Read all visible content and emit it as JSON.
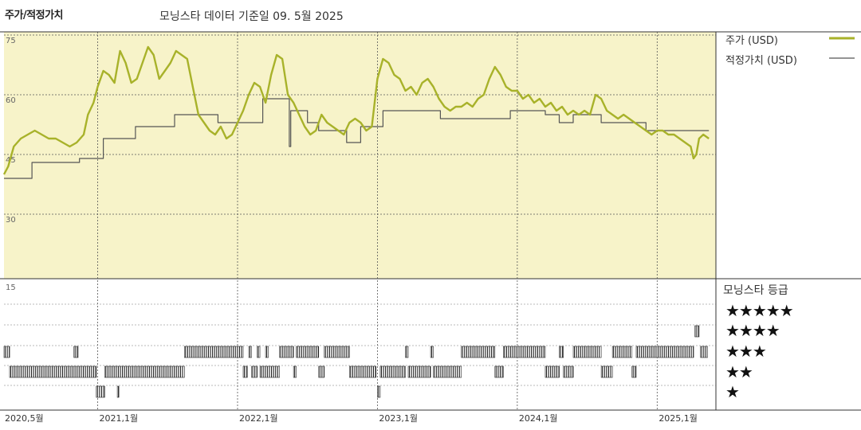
{
  "header": {
    "title": "주가/적정가치",
    "subtitle": "모닝스타 데이터 기준일 09. 5월 2025"
  },
  "legend": {
    "price_label": "주가 (USD)",
    "fair_label": "적정가치 (USD)",
    "price_color": "#a8b22a",
    "fair_color": "#555555"
  },
  "rating_panel": {
    "title": "모닝스타 등급",
    "rows": [
      "★★★★★",
      "★★★★",
      "★★★",
      "★★",
      "★"
    ]
  },
  "chart_data": [
    {
      "type": "line",
      "title": "주가/적정가치",
      "y_ticks": [
        "75",
        "60",
        "45",
        "30",
        "15"
      ],
      "ylim": [
        15,
        75
      ],
      "x_tick_labels": [
        "2020,5월",
        "2021,1월",
        "2022,1월",
        "2023,1월",
        "2024,1월",
        "2025,1월"
      ],
      "x_ticks": [
        2020.33,
        2021.0,
        2022.0,
        2023.0,
        2024.0,
        2025.0
      ],
      "xlim": [
        2020.33,
        2025.42
      ],
      "grid": true,
      "background": "#f7f3c9",
      "series": [
        {
          "name": "주가 (USD)",
          "color": "#a8b22a",
          "points": [
            [
              2020.33,
              40
            ],
            [
              2020.36,
              42
            ],
            [
              2020.4,
              47
            ],
            [
              2020.45,
              49
            ],
            [
              2020.5,
              50
            ],
            [
              2020.55,
              51
            ],
            [
              2020.6,
              50
            ],
            [
              2020.65,
              49
            ],
            [
              2020.7,
              49
            ],
            [
              2020.75,
              48
            ],
            [
              2020.8,
              47
            ],
            [
              2020.85,
              48
            ],
            [
              2020.9,
              50
            ],
            [
              2020.93,
              55
            ],
            [
              2020.97,
              58
            ],
            [
              2021.0,
              62
            ],
            [
              2021.04,
              66
            ],
            [
              2021.08,
              65
            ],
            [
              2021.12,
              63
            ],
            [
              2021.16,
              71
            ],
            [
              2021.2,
              68
            ],
            [
              2021.24,
              63
            ],
            [
              2021.28,
              64
            ],
            [
              2021.32,
              68
            ],
            [
              2021.36,
              72
            ],
            [
              2021.4,
              70
            ],
            [
              2021.44,
              64
            ],
            [
              2021.48,
              66
            ],
            [
              2021.52,
              68
            ],
            [
              2021.56,
              71
            ],
            [
              2021.6,
              70
            ],
            [
              2021.64,
              69
            ],
            [
              2021.68,
              62
            ],
            [
              2021.72,
              55
            ],
            [
              2021.76,
              53
            ],
            [
              2021.8,
              51
            ],
            [
              2021.84,
              50
            ],
            [
              2021.88,
              52
            ],
            [
              2021.92,
              49
            ],
            [
              2021.96,
              50
            ],
            [
              2022.0,
              53
            ],
            [
              2022.04,
              56
            ],
            [
              2022.08,
              60
            ],
            [
              2022.12,
              63
            ],
            [
              2022.16,
              62
            ],
            [
              2022.2,
              58
            ],
            [
              2022.24,
              65
            ],
            [
              2022.28,
              70
            ],
            [
              2022.32,
              69
            ],
            [
              2022.36,
              60
            ],
            [
              2022.4,
              58
            ],
            [
              2022.44,
              55
            ],
            [
              2022.48,
              52
            ],
            [
              2022.52,
              50
            ],
            [
              2022.56,
              51
            ],
            [
              2022.6,
              55
            ],
            [
              2022.64,
              53
            ],
            [
              2022.68,
              52
            ],
            [
              2022.72,
              51
            ],
            [
              2022.76,
              50
            ],
            [
              2022.8,
              53
            ],
            [
              2022.84,
              54
            ],
            [
              2022.88,
              53
            ],
            [
              2022.92,
              51
            ],
            [
              2022.96,
              52
            ],
            [
              2023.0,
              64
            ],
            [
              2023.04,
              69
            ],
            [
              2023.08,
              68
            ],
            [
              2023.12,
              65
            ],
            [
              2023.16,
              64
            ],
            [
              2023.2,
              61
            ],
            [
              2023.24,
              62
            ],
            [
              2023.28,
              60
            ],
            [
              2023.32,
              63
            ],
            [
              2023.36,
              64
            ],
            [
              2023.4,
              62
            ],
            [
              2023.44,
              59
            ],
            [
              2023.48,
              57
            ],
            [
              2023.52,
              56
            ],
            [
              2023.56,
              57
            ],
            [
              2023.6,
              57
            ],
            [
              2023.64,
              58
            ],
            [
              2023.68,
              57
            ],
            [
              2023.72,
              59
            ],
            [
              2023.76,
              60
            ],
            [
              2023.8,
              64
            ],
            [
              2023.84,
              67
            ],
            [
              2023.88,
              65
            ],
            [
              2023.92,
              62
            ],
            [
              2023.96,
              61
            ],
            [
              2024.0,
              61
            ],
            [
              2024.04,
              59
            ],
            [
              2024.08,
              60
            ],
            [
              2024.12,
              58
            ],
            [
              2024.16,
              59
            ],
            [
              2024.2,
              57
            ],
            [
              2024.24,
              58
            ],
            [
              2024.28,
              56
            ],
            [
              2024.32,
              57
            ],
            [
              2024.36,
              55
            ],
            [
              2024.4,
              56
            ],
            [
              2024.44,
              55
            ],
            [
              2024.48,
              56
            ],
            [
              2024.52,
              55
            ],
            [
              2024.56,
              60
            ],
            [
              2024.6,
              59
            ],
            [
              2024.64,
              56
            ],
            [
              2024.68,
              55
            ],
            [
              2024.72,
              54
            ],
            [
              2024.76,
              55
            ],
            [
              2024.8,
              54
            ],
            [
              2024.84,
              53
            ],
            [
              2024.88,
              52
            ],
            [
              2024.92,
              51
            ],
            [
              2024.96,
              50
            ],
            [
              2025.0,
              51
            ],
            [
              2025.04,
              51
            ],
            [
              2025.08,
              50
            ],
            [
              2025.12,
              50
            ],
            [
              2025.16,
              49
            ],
            [
              2025.2,
              48
            ],
            [
              2025.24,
              47
            ],
            [
              2025.26,
              44
            ],
            [
              2025.28,
              45
            ],
            [
              2025.3,
              49
            ],
            [
              2025.33,
              50
            ],
            [
              2025.37,
              49
            ]
          ]
        },
        {
          "name": "적정가치 (USD)",
          "color": "#555555",
          "points": [
            [
              2020.33,
              39
            ],
            [
              2020.53,
              39
            ],
            [
              2020.53,
              43
            ],
            [
              2020.87,
              43
            ],
            [
              2020.87,
              44
            ],
            [
              2021.04,
              44
            ],
            [
              2021.04,
              49
            ],
            [
              2021.27,
              49
            ],
            [
              2021.27,
              52
            ],
            [
              2021.55,
              52
            ],
            [
              2021.55,
              55
            ],
            [
              2021.86,
              55
            ],
            [
              2021.86,
              53
            ],
            [
              2022.18,
              53
            ],
            [
              2022.18,
              59
            ],
            [
              2022.37,
              59
            ],
            [
              2022.37,
              47
            ],
            [
              2022.38,
              47
            ],
            [
              2022.38,
              56
            ],
            [
              2022.5,
              56
            ],
            [
              2022.5,
              53
            ],
            [
              2022.58,
              53
            ],
            [
              2022.58,
              51
            ],
            [
              2022.78,
              51
            ],
            [
              2022.78,
              48
            ],
            [
              2022.88,
              48
            ],
            [
              2022.88,
              52
            ],
            [
              2023.04,
              52
            ],
            [
              2023.04,
              56
            ],
            [
              2023.45,
              56
            ],
            [
              2023.45,
              54
            ],
            [
              2023.95,
              54
            ],
            [
              2023.95,
              56
            ],
            [
              2024.2,
              56
            ],
            [
              2024.2,
              55
            ],
            [
              2024.3,
              55
            ],
            [
              2024.3,
              53
            ],
            [
              2024.4,
              53
            ],
            [
              2024.4,
              55
            ],
            [
              2024.6,
              55
            ],
            [
              2024.6,
              53
            ],
            [
              2024.92,
              53
            ],
            [
              2024.92,
              51
            ],
            [
              2025.37,
              51
            ]
          ]
        }
      ]
    },
    {
      "type": "heatmap",
      "title": "모닝스타 등급",
      "rows": [
        "5",
        "4",
        "3",
        "2",
        "1"
      ],
      "x_range": [
        2020.33,
        2025.42
      ],
      "segments": [
        {
          "stars": 4,
          "from": 2025.27,
          "to": 2025.3
        },
        {
          "stars": 3,
          "from": 2020.33,
          "to": 2020.37
        },
        {
          "stars": 3,
          "from": 2020.83,
          "to": 2020.86
        },
        {
          "stars": 3,
          "from": 2021.62,
          "to": 2022.04
        },
        {
          "stars": 3,
          "from": 2022.08,
          "to": 2022.1
        },
        {
          "stars": 3,
          "from": 2022.14,
          "to": 2022.16
        },
        {
          "stars": 3,
          "from": 2022.2,
          "to": 2022.22
        },
        {
          "stars": 3,
          "from": 2022.3,
          "to": 2022.4
        },
        {
          "stars": 3,
          "from": 2022.42,
          "to": 2022.58
        },
        {
          "stars": 3,
          "from": 2022.62,
          "to": 2022.8
        },
        {
          "stars": 3,
          "from": 2023.2,
          "to": 2023.22
        },
        {
          "stars": 3,
          "from": 2023.38,
          "to": 2023.4
        },
        {
          "stars": 3,
          "from": 2023.6,
          "to": 2023.84
        },
        {
          "stars": 3,
          "from": 2023.9,
          "to": 2024.2
        },
        {
          "stars": 3,
          "from": 2024.3,
          "to": 2024.33
        },
        {
          "stars": 3,
          "from": 2024.4,
          "to": 2024.6
        },
        {
          "stars": 3,
          "from": 2024.68,
          "to": 2024.82
        },
        {
          "stars": 3,
          "from": 2024.85,
          "to": 2025.26
        },
        {
          "stars": 3,
          "from": 2025.31,
          "to": 2025.36
        },
        {
          "stars": 2,
          "from": 2020.37,
          "to": 2020.99
        },
        {
          "stars": 2,
          "from": 2021.05,
          "to": 2021.62
        },
        {
          "stars": 2,
          "from": 2022.04,
          "to": 2022.07
        },
        {
          "stars": 2,
          "from": 2022.1,
          "to": 2022.14
        },
        {
          "stars": 2,
          "from": 2022.16,
          "to": 2022.3
        },
        {
          "stars": 2,
          "from": 2022.4,
          "to": 2022.42
        },
        {
          "stars": 2,
          "from": 2022.58,
          "to": 2022.62
        },
        {
          "stars": 2,
          "from": 2022.8,
          "to": 2022.99
        },
        {
          "stars": 2,
          "from": 2023.02,
          "to": 2023.2
        },
        {
          "stars": 2,
          "from": 2023.22,
          "to": 2023.38
        },
        {
          "stars": 2,
          "from": 2023.4,
          "to": 2023.6
        },
        {
          "stars": 2,
          "from": 2023.84,
          "to": 2023.9
        },
        {
          "stars": 2,
          "from": 2024.2,
          "to": 2024.3
        },
        {
          "stars": 2,
          "from": 2024.33,
          "to": 2024.4
        },
        {
          "stars": 2,
          "from": 2024.6,
          "to": 2024.68
        },
        {
          "stars": 2,
          "from": 2024.82,
          "to": 2024.85
        },
        {
          "stars": 1,
          "from": 2020.99,
          "to": 2021.05
        },
        {
          "stars": 1,
          "from": 2021.14,
          "to": 2021.15
        },
        {
          "stars": 1,
          "from": 2023.0,
          "to": 2023.02
        }
      ]
    }
  ]
}
